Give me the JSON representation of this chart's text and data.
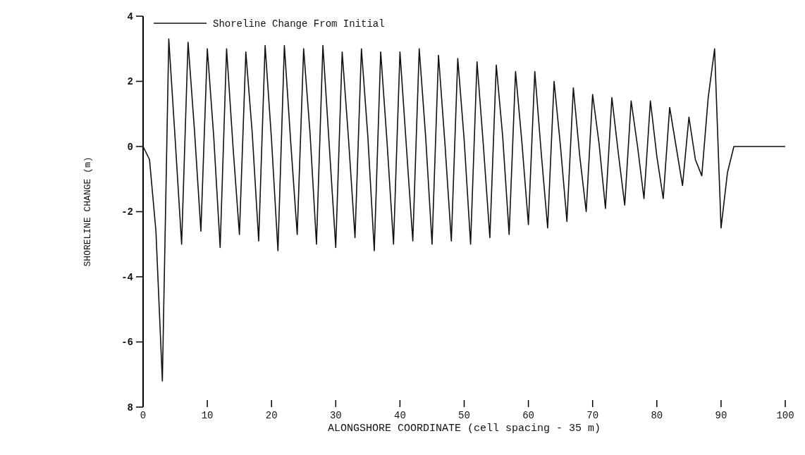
{
  "chart_data": {
    "type": "line",
    "xlabel": "ALONGSHORE COORDINATE (cell spacing - 35 m)",
    "ylabel": "SHORELINE CHANGE (m)",
    "x": [
      0,
      1,
      2,
      3,
      4,
      5,
      6,
      7,
      8,
      9,
      10,
      11,
      12,
      13,
      14,
      15,
      16,
      17,
      18,
      19,
      20,
      21,
      22,
      23,
      24,
      25,
      26,
      27,
      28,
      29,
      30,
      31,
      32,
      33,
      34,
      35,
      36,
      37,
      38,
      39,
      40,
      41,
      42,
      43,
      44,
      45,
      46,
      47,
      48,
      49,
      50,
      51,
      52,
      53,
      54,
      55,
      56,
      57,
      58,
      59,
      60,
      61,
      62,
      63,
      64,
      65,
      66,
      67,
      68,
      69,
      70,
      71,
      72,
      73,
      74,
      75,
      76,
      77,
      78,
      79,
      80,
      81,
      82,
      83,
      84,
      85,
      86,
      87,
      88,
      89,
      90,
      91,
      92,
      93,
      94,
      95,
      96,
      97,
      98,
      99,
      100
    ],
    "series": [
      {
        "name": "Shoreline Change From Initial",
        "color": "#111111",
        "values": [
          0,
          -0.4,
          -2.6,
          -7.2,
          3.3,
          0.2,
          -3.0,
          3.2,
          0.5,
          -2.6,
          3.0,
          0.3,
          -3.1,
          3.0,
          0.0,
          -2.7,
          2.9,
          0.4,
          -2.9,
          3.1,
          0.2,
          -3.2,
          3.1,
          0.1,
          -2.7,
          3.0,
          0.4,
          -3.0,
          3.1,
          0.0,
          -3.1,
          2.9,
          0.2,
          -2.8,
          3.0,
          0.3,
          -3.2,
          2.9,
          0.1,
          -3.0,
          2.9,
          0.0,
          -2.9,
          3.0,
          0.3,
          -3.0,
          2.8,
          0.1,
          -2.9,
          2.7,
          0.2,
          -3.0,
          2.6,
          0.0,
          -2.8,
          2.5,
          0.3,
          -2.7,
          2.3,
          0.1,
          -2.4,
          2.3,
          -0.2,
          -2.5,
          2.0,
          0.0,
          -2.3,
          1.8,
          -0.3,
          -2.0,
          1.6,
          0.1,
          -1.9,
          1.5,
          -0.2,
          -1.8,
          1.4,
          0.0,
          -1.6,
          1.4,
          -0.3,
          -1.6,
          1.2,
          0.0,
          -1.2,
          0.9,
          -0.4,
          -0.9,
          1.5,
          3.0,
          -2.5,
          -0.8,
          0,
          0,
          0,
          0,
          0,
          0,
          0,
          0,
          0
        ]
      }
    ],
    "xlim": [
      0,
      100
    ],
    "xticks": [
      0,
      10,
      20,
      30,
      40,
      50,
      60,
      70,
      80,
      90,
      100
    ],
    "ylim": [
      -8,
      4
    ],
    "yticks": [
      {
        "value": -8,
        "label": "8"
      },
      -6,
      -4,
      -2,
      0,
      2,
      4
    ],
    "grid": false,
    "legend": "top left",
    "line_style": "solid",
    "marker": "none"
  }
}
